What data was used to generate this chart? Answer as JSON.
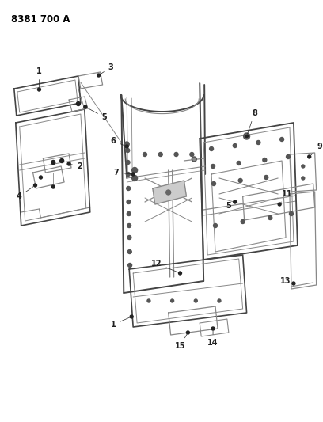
{
  "title": "8381 700 A",
  "bg": "#ffffff",
  "lc": "#888888",
  "dc": "#444444",
  "blk": "#222222",
  "fig_width": 4.08,
  "fig_height": 5.33,
  "dpi": 100
}
